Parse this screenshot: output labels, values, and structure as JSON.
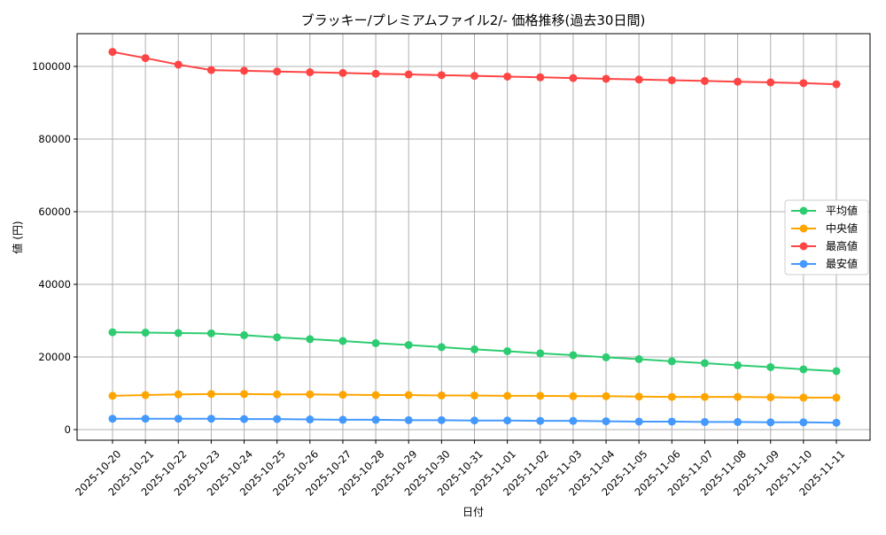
{
  "chart_data": {
    "type": "line",
    "title": "ブラッキー/プレミアムファイル2/- 価格推移(過去30日間)",
    "xlabel": "日付",
    "ylabel": "値 (円)",
    "ylim": [
      -3000,
      109000
    ],
    "yticks": [
      0,
      20000,
      40000,
      60000,
      80000,
      100000
    ],
    "grid": true,
    "legend_position": "center-right",
    "categories": [
      "2025-10-20",
      "2025-10-21",
      "2025-10-22",
      "2025-10-23",
      "2025-10-24",
      "2025-10-25",
      "2025-10-26",
      "2025-10-27",
      "2025-10-28",
      "2025-10-29",
      "2025-10-30",
      "2025-10-31",
      "2025-11-01",
      "2025-11-02",
      "2025-11-03",
      "2025-11-04",
      "2025-11-05",
      "2025-11-06",
      "2025-11-07",
      "2025-11-08",
      "2025-11-09",
      "2025-11-10",
      "2025-11-11"
    ],
    "series": [
      {
        "name": "平均値",
        "color": "#2ecc71",
        "values": [
          26800,
          26700,
          26600,
          26500,
          26000,
          25400,
          24900,
          24400,
          23800,
          23300,
          22700,
          22100,
          21600,
          21000,
          20500,
          19900,
          19400,
          18800,
          18300,
          17700,
          17200,
          16600,
          16100
        ]
      },
      {
        "name": "中央値",
        "color": "#ffa500",
        "values": [
          9300,
          9500,
          9700,
          9800,
          9800,
          9700,
          9700,
          9600,
          9500,
          9500,
          9400,
          9400,
          9300,
          9300,
          9200,
          9200,
          9100,
          9000,
          9000,
          9000,
          8900,
          8800,
          8800
        ]
      },
      {
        "name": "最高値",
        "color": "#ff4444",
        "values": [
          104000,
          102300,
          100500,
          99000,
          98800,
          98600,
          98400,
          98200,
          98000,
          97800,
          97600,
          97400,
          97200,
          97000,
          96800,
          96600,
          96400,
          96200,
          96000,
          95800,
          95600,
          95400,
          95100
        ]
      },
      {
        "name": "最安値",
        "color": "#4499ff",
        "values": [
          3000,
          3000,
          3000,
          3000,
          2900,
          2900,
          2800,
          2700,
          2700,
          2600,
          2600,
          2500,
          2500,
          2400,
          2400,
          2300,
          2200,
          2200,
          2100,
          2100,
          2000,
          2000,
          1900
        ]
      }
    ]
  }
}
